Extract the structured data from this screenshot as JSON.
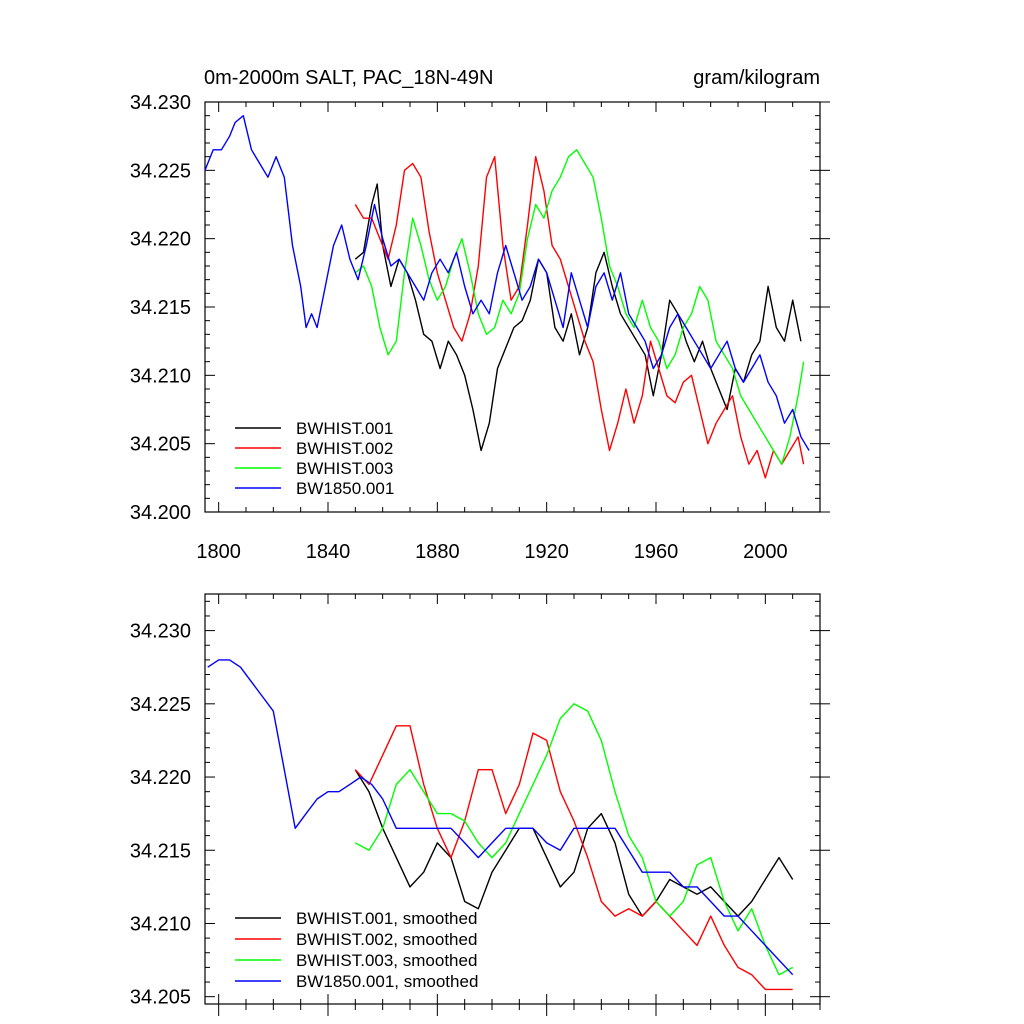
{
  "chart_data": [
    {
      "type": "line",
      "title_left": "0m-2000m SALT, PAC_18N-49N",
      "title_right": "gram/kilogram",
      "xlabel": "",
      "ylabel": "",
      "xlim": [
        1795,
        2020
      ],
      "ylim": [
        34.2,
        34.23
      ],
      "xticks": [
        1800,
        1840,
        1880,
        1920,
        1960,
        2000
      ],
      "yticks": [
        34.2,
        34.205,
        34.21,
        34.215,
        34.22,
        34.225,
        34.23
      ],
      "xtick_labels": [
        "1800",
        "1840",
        "1880",
        "1920",
        "1960",
        "2000"
      ],
      "ytick_labels": [
        "34.200",
        "34.205",
        "34.210",
        "34.215",
        "34.220",
        "34.225",
        "34.230"
      ],
      "legend_position": "bottom-left",
      "series": [
        {
          "name": "BWHIST.001",
          "color": "#000000",
          "x": [
            1850,
            1853,
            1856,
            1858,
            1860,
            1863,
            1866,
            1869,
            1872,
            1875,
            1878,
            1881,
            1884,
            1887,
            1890,
            1893,
            1896,
            1899,
            1902,
            1905,
            1908,
            1911,
            1914,
            1917,
            1920,
            1923,
            1926,
            1929,
            1932,
            1935,
            1938,
            1941,
            1944,
            1947,
            1950,
            1953,
            1956,
            1959,
            1962,
            1965,
            1968,
            1971,
            1974,
            1977,
            1980,
            1983,
            1986,
            1989,
            1992,
            1995,
            1998,
            2001,
            2004,
            2007,
            2010,
            2013
          ],
          "y": [
            34.2185,
            34.219,
            34.2225,
            34.224,
            34.2195,
            34.2165,
            34.2185,
            34.2175,
            34.2155,
            34.213,
            34.2125,
            34.2105,
            34.2125,
            34.2115,
            34.21,
            34.2075,
            34.2045,
            34.2065,
            34.2105,
            34.212,
            34.2135,
            34.214,
            34.2155,
            34.2185,
            34.2175,
            34.2135,
            34.2125,
            34.2145,
            34.2115,
            34.2135,
            34.2175,
            34.219,
            34.2165,
            34.2145,
            34.2135,
            34.2125,
            34.2115,
            34.2085,
            34.2115,
            34.2155,
            34.2145,
            34.2125,
            34.211,
            34.2125,
            34.2105,
            34.209,
            34.2075,
            34.2105,
            34.2095,
            34.2115,
            34.2125,
            34.2165,
            34.2135,
            34.2125,
            34.2155,
            34.2125
          ]
        },
        {
          "name": "BWHIST.002",
          "color": "#ff0000",
          "x": [
            1850,
            1853,
            1856,
            1859,
            1862,
            1865,
            1868,
            1871,
            1874,
            1877,
            1880,
            1883,
            1886,
            1889,
            1892,
            1895,
            1898,
            1901,
            1904,
            1907,
            1910,
            1913,
            1916,
            1919,
            1922,
            1925,
            1928,
            1931,
            1934,
            1937,
            1940,
            1943,
            1946,
            1949,
            1952,
            1955,
            1958,
            1961,
            1964,
            1967,
            1970,
            1973,
            1976,
            1979,
            1982,
            1985,
            1988,
            1991,
            1994,
            1997,
            2000,
            2003,
            2006,
            2009,
            2012,
            2014
          ],
          "y": [
            34.2225,
            34.2215,
            34.2215,
            34.22,
            34.2185,
            34.221,
            34.225,
            34.2255,
            34.2245,
            34.2205,
            34.2175,
            34.2155,
            34.2135,
            34.2125,
            34.2145,
            34.218,
            34.2245,
            34.226,
            34.2195,
            34.2155,
            34.2165,
            34.221,
            34.226,
            34.2235,
            34.2195,
            34.2185,
            34.2165,
            34.2145,
            34.2125,
            34.211,
            34.2075,
            34.2045,
            34.2065,
            34.209,
            34.2065,
            34.2085,
            34.2125,
            34.2105,
            34.2085,
            34.208,
            34.2095,
            34.21,
            34.2075,
            34.205,
            34.2065,
            34.2075,
            34.2085,
            34.2055,
            34.2035,
            34.2045,
            34.2025,
            34.2045,
            34.2035,
            34.2045,
            34.2055,
            34.2035
          ]
        },
        {
          "name": "BWHIST.003",
          "color": "#00ff00",
          "x": [
            1850,
            1853,
            1856,
            1859,
            1862,
            1865,
            1868,
            1871,
            1874,
            1877,
            1880,
            1883,
            1886,
            1889,
            1892,
            1895,
            1898,
            1901,
            1904,
            1907,
            1910,
            1913,
            1916,
            1919,
            1922,
            1925,
            1928,
            1931,
            1934,
            1937,
            1940,
            1943,
            1946,
            1949,
            1952,
            1955,
            1958,
            1961,
            1964,
            1967,
            1970,
            1973,
            1976,
            1979,
            1982,
            1985,
            1988,
            1991,
            1994,
            1997,
            2000,
            2003,
            2006,
            2009,
            2012,
            2014
          ],
          "y": [
            34.2175,
            34.218,
            34.2165,
            34.2135,
            34.2115,
            34.2125,
            34.2175,
            34.2215,
            34.2195,
            34.217,
            34.2155,
            34.2165,
            34.2185,
            34.22,
            34.2175,
            34.2145,
            34.213,
            34.2135,
            34.2155,
            34.2145,
            34.216,
            34.22,
            34.2225,
            34.2215,
            34.2235,
            34.2245,
            34.226,
            34.2265,
            34.2255,
            34.2245,
            34.2215,
            34.218,
            34.2165,
            34.2145,
            34.2135,
            34.2155,
            34.2135,
            34.2125,
            34.2105,
            34.2115,
            34.2135,
            34.2145,
            34.2165,
            34.2155,
            34.2125,
            34.2115,
            34.2105,
            34.2085,
            34.2075,
            34.2065,
            34.2055,
            34.2045,
            34.2035,
            34.2055,
            34.2085,
            34.211
          ]
        },
        {
          "name": "BW1850.001",
          "color": "#0000ff",
          "x": [
            1795,
            1798,
            1801,
            1804,
            1806,
            1809,
            1812,
            1815,
            1818,
            1821,
            1824,
            1827,
            1830,
            1832,
            1834,
            1836,
            1839,
            1842,
            1845,
            1848,
            1851,
            1854,
            1857,
            1860,
            1863,
            1866,
            1869,
            1872,
            1875,
            1878,
            1881,
            1884,
            1887,
            1890,
            1893,
            1896,
            1899,
            1902,
            1905,
            1908,
            1911,
            1914,
            1917,
            1920,
            1923,
            1926,
            1929,
            1932,
            1935,
            1938,
            1941,
            1944,
            1947,
            1950,
            1953,
            1956,
            1959,
            1962,
            1965,
            1968,
            1971,
            1974,
            1977,
            1980,
            1983,
            1986,
            1989,
            1992,
            1995,
            1998,
            2001,
            2004,
            2007,
            2010,
            2013,
            2016
          ],
          "y": [
            34.225,
            34.2265,
            34.2265,
            34.2275,
            34.2285,
            34.229,
            34.2265,
            34.2255,
            34.2245,
            34.226,
            34.2245,
            34.2195,
            34.2165,
            34.2135,
            34.2145,
            34.2135,
            34.2165,
            34.2195,
            34.221,
            34.2185,
            34.217,
            34.2195,
            34.2225,
            34.22,
            34.218,
            34.2185,
            34.2175,
            34.2165,
            34.2155,
            34.2175,
            34.2185,
            34.2175,
            34.219,
            34.2165,
            34.2145,
            34.2155,
            34.2145,
            34.2175,
            34.2195,
            34.2175,
            34.2155,
            34.2165,
            34.2185,
            34.2175,
            34.2155,
            34.2135,
            34.2175,
            34.2155,
            34.2135,
            34.2165,
            34.2175,
            34.2155,
            34.2175,
            34.2145,
            34.2135,
            34.2125,
            34.2105,
            34.2115,
            34.2135,
            34.2145,
            34.2135,
            34.2125,
            34.2115,
            34.2105,
            34.2115,
            34.2125,
            34.2105,
            34.2095,
            34.2105,
            34.2115,
            34.2095,
            34.2085,
            34.2065,
            34.2075,
            34.2055,
            34.2045
          ]
        }
      ],
      "legend": [
        "BWHIST.001",
        "BWHIST.002",
        "BWHIST.003",
        "BW1850.001"
      ]
    },
    {
      "type": "line",
      "title_left": "",
      "title_right": "",
      "xlabel": "",
      "ylabel": "",
      "xlim": [
        1795,
        2020
      ],
      "ylim": [
        34.2045,
        34.2325
      ],
      "xticks": [
        1800,
        1840,
        1880,
        1920,
        1960,
        2000
      ],
      "yticks": [
        34.205,
        34.21,
        34.215,
        34.22,
        34.225,
        34.23
      ],
      "ytick_labels": [
        "34.205",
        "34.210",
        "34.215",
        "34.220",
        "34.225",
        "34.230"
      ],
      "legend_position": "bottom-left",
      "series": [
        {
          "name": "BWHIST.001, smoothed",
          "color": "#000000",
          "x": [
            1850,
            1855,
            1860,
            1865,
            1870,
            1875,
            1880,
            1885,
            1890,
            1895,
            1900,
            1905,
            1910,
            1915,
            1920,
            1925,
            1930,
            1935,
            1940,
            1945,
            1950,
            1955,
            1960,
            1965,
            1970,
            1975,
            1980,
            1985,
            1990,
            1995,
            2000,
            2005,
            2010
          ],
          "y": [
            34.2205,
            34.219,
            34.2165,
            34.2145,
            34.2125,
            34.2135,
            34.2155,
            34.2145,
            34.2115,
            34.211,
            34.2135,
            34.215,
            34.2165,
            34.2165,
            34.2145,
            34.2125,
            34.2135,
            34.2165,
            34.2175,
            34.2155,
            34.212,
            34.2105,
            34.2115,
            34.213,
            34.2125,
            34.212,
            34.2125,
            34.2115,
            34.2105,
            34.2115,
            34.213,
            34.2145,
            34.213
          ]
        },
        {
          "name": "BWHIST.002, smoothed",
          "color": "#ff0000",
          "x": [
            1850,
            1855,
            1860,
            1865,
            1870,
            1875,
            1880,
            1885,
            1890,
            1895,
            1900,
            1905,
            1910,
            1915,
            1920,
            1925,
            1930,
            1935,
            1940,
            1945,
            1950,
            1955,
            1960,
            1965,
            1970,
            1975,
            1980,
            1985,
            1990,
            1995,
            2000,
            2005,
            2010
          ],
          "y": [
            34.2205,
            34.2195,
            34.2215,
            34.2235,
            34.2235,
            34.2195,
            34.2165,
            34.2145,
            34.217,
            34.2205,
            34.2205,
            34.2175,
            34.2195,
            34.223,
            34.2225,
            34.219,
            34.217,
            34.2145,
            34.2115,
            34.2105,
            34.211,
            34.2105,
            34.2115,
            34.2105,
            34.2095,
            34.2085,
            34.2105,
            34.2085,
            34.207,
            34.2065,
            34.2055,
            34.2055,
            34.2055
          ]
        },
        {
          "name": "BWHIST.003, smoothed",
          "color": "#00ff00",
          "x": [
            1850,
            1855,
            1860,
            1865,
            1870,
            1875,
            1880,
            1885,
            1890,
            1895,
            1900,
            1905,
            1910,
            1915,
            1920,
            1925,
            1930,
            1935,
            1940,
            1945,
            1950,
            1955,
            1960,
            1965,
            1970,
            1975,
            1980,
            1985,
            1990,
            1995,
            2000,
            2005,
            2010
          ],
          "y": [
            34.2155,
            34.215,
            34.2165,
            34.2195,
            34.2205,
            34.219,
            34.2175,
            34.2175,
            34.217,
            34.2155,
            34.2145,
            34.2155,
            34.2175,
            34.2195,
            34.2215,
            34.224,
            34.225,
            34.2245,
            34.2225,
            34.219,
            34.216,
            34.2145,
            34.2115,
            34.2105,
            34.2115,
            34.214,
            34.2145,
            34.2115,
            34.2095,
            34.211,
            34.2085,
            34.2065,
            34.207
          ]
        },
        {
          "name": "BW1850.001, smoothed",
          "color": "#0000ff",
          "x": [
            1796,
            1800,
            1804,
            1808,
            1812,
            1816,
            1820,
            1824,
            1828,
            1832,
            1836,
            1840,
            1844,
            1848,
            1852,
            1856,
            1860,
            1865,
            1870,
            1875,
            1880,
            1885,
            1890,
            1895,
            1900,
            1905,
            1910,
            1915,
            1920,
            1925,
            1930,
            1935,
            1940,
            1945,
            1950,
            1955,
            1960,
            1965,
            1970,
            1975,
            1980,
            1985,
            1990,
            1995,
            2000,
            2005,
            2010
          ],
          "y": [
            34.2275,
            34.228,
            34.228,
            34.2275,
            34.2265,
            34.2255,
            34.2245,
            34.2205,
            34.2165,
            34.2175,
            34.2185,
            34.219,
            34.219,
            34.2195,
            34.22,
            34.2195,
            34.2185,
            34.2165,
            34.2165,
            34.2165,
            34.2165,
            34.2165,
            34.2155,
            34.2145,
            34.2155,
            34.2165,
            34.2165,
            34.2165,
            34.2155,
            34.215,
            34.2165,
            34.2165,
            34.2165,
            34.2165,
            34.215,
            34.2135,
            34.2135,
            34.2135,
            34.2125,
            34.2125,
            34.2115,
            34.2105,
            34.2105,
            34.2095,
            34.2085,
            34.2075,
            34.2065
          ]
        }
      ],
      "legend": [
        "BWHIST.001, smoothed",
        "BWHIST.002, smoothed",
        "BWHIST.003, smoothed",
        "BW1850.001, smoothed"
      ]
    }
  ]
}
